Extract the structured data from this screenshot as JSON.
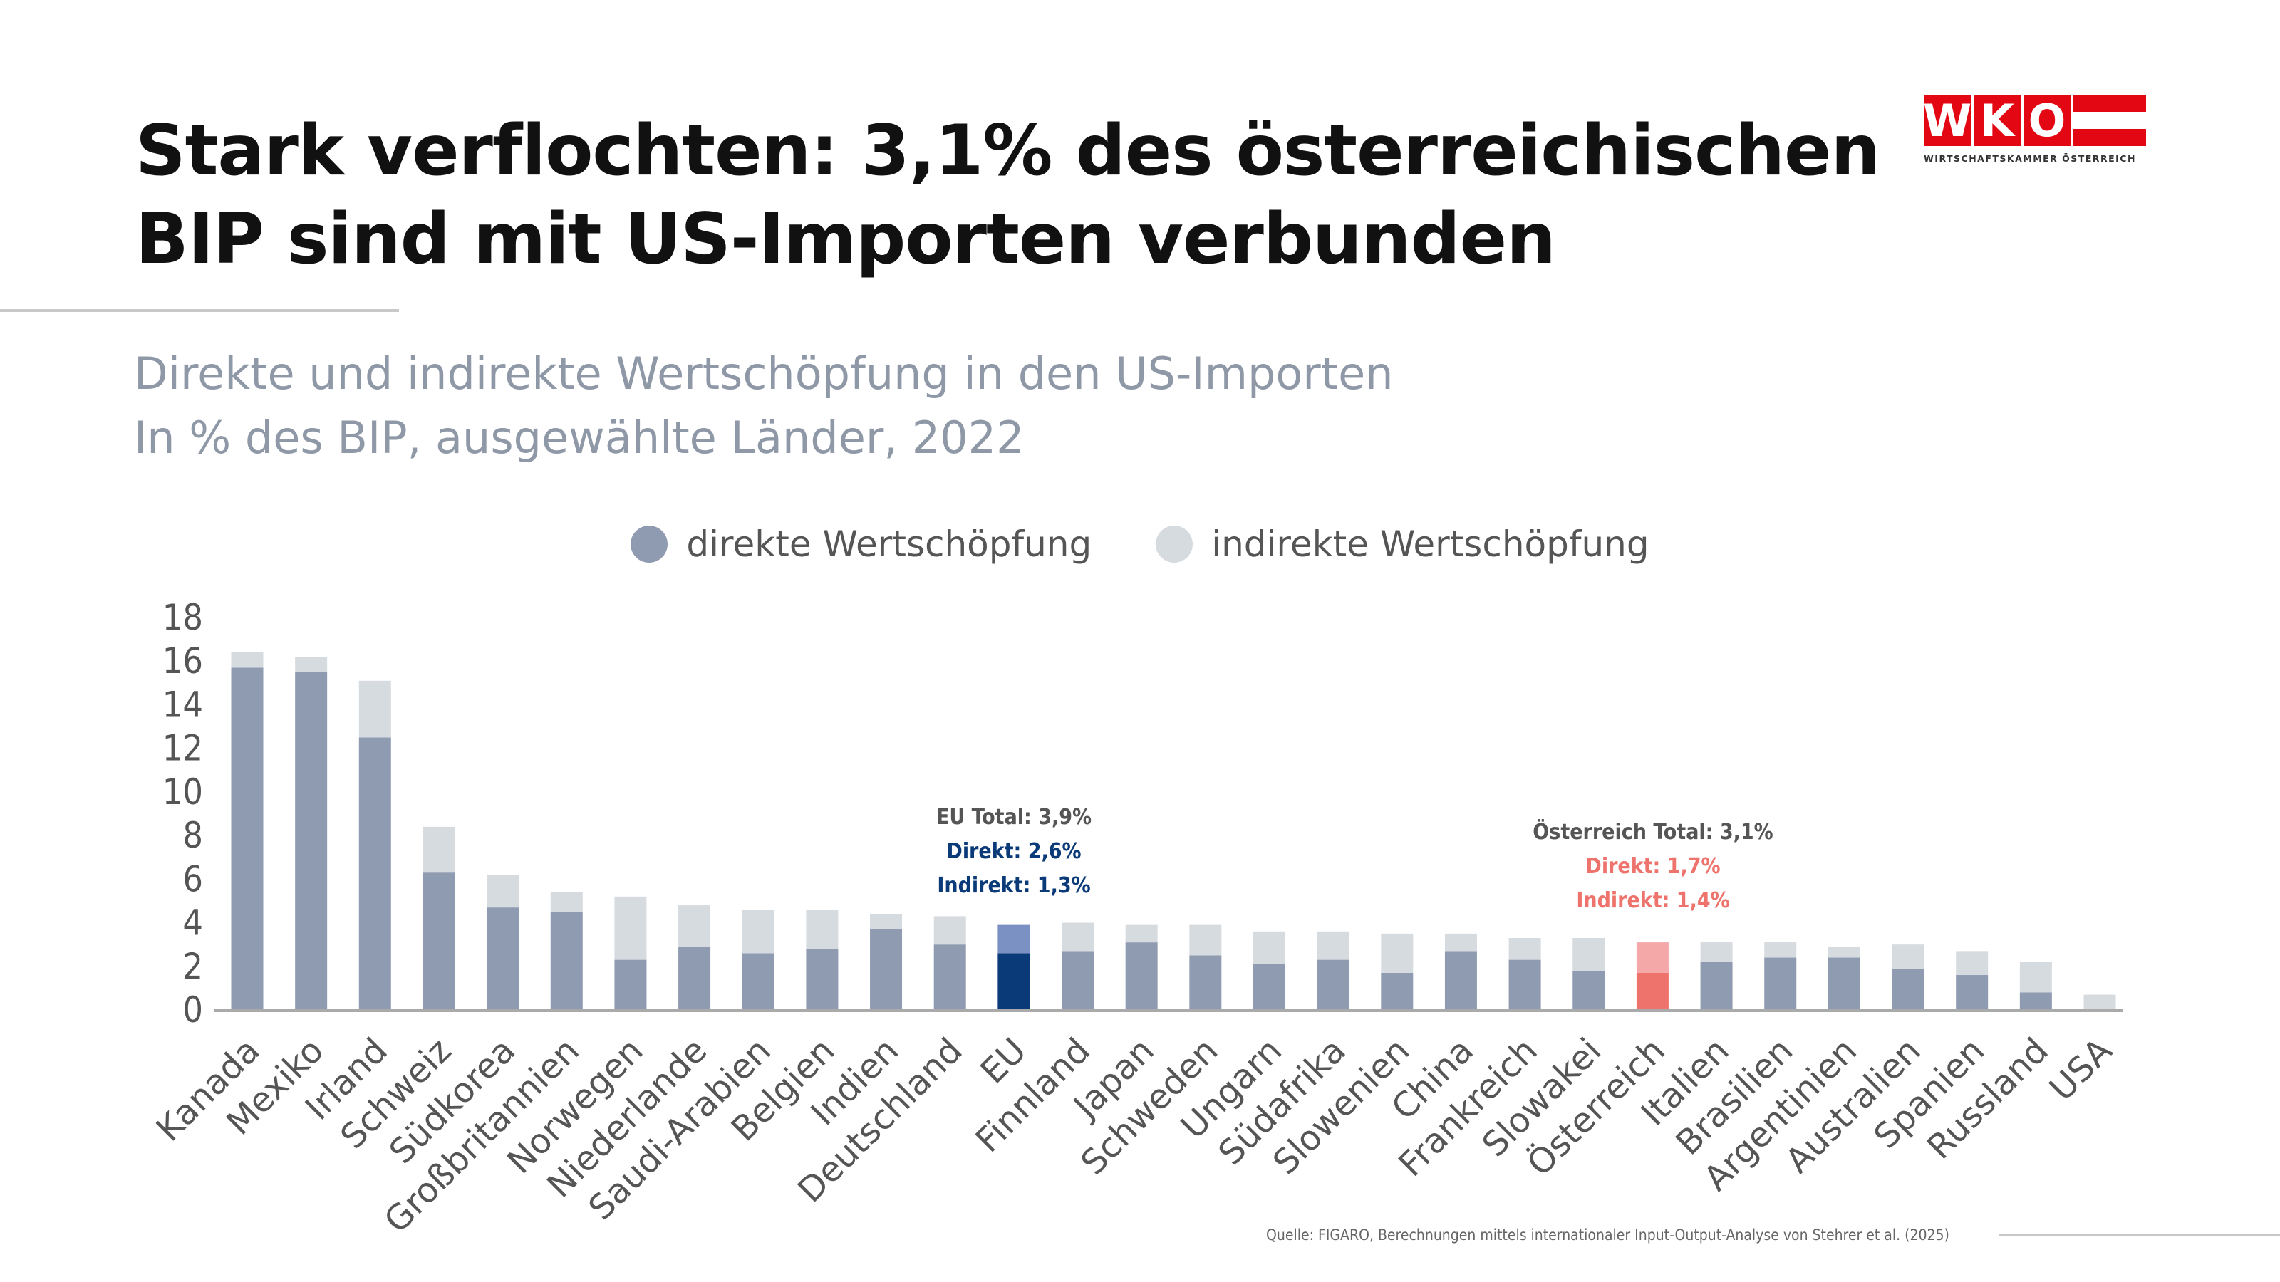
{
  "title": [
    "Stark verflochten: 3,1% des österreichischen",
    "BIP sind mit US-Importen verbunden"
  ],
  "subtitle": [
    "Direkte und indirekte Wertschöpfung in den US-Importen",
    "In % des BIP, ausgewählte Länder, 2022"
  ],
  "logo": {
    "letters": [
      "W",
      "K",
      "O"
    ],
    "text": "WIRTSCHAFTSKAMMER ÖSTERREICH",
    "color": "#e30613"
  },
  "source": "Quelle: FIGARO, Berechnungen mittels internationaler Input-Output-Analyse von Stehrer et al. (2025)",
  "annotations": {
    "eu": {
      "total": "EU Total: 3,9%",
      "direct": "Direkt: 2,6%",
      "indirect": "Indirekt: 1,3%",
      "color": "#0a3a78"
    },
    "austria": {
      "total": "Österreich Total: 3,1%",
      "direct": "Direkt: 1,7%",
      "indirect": "Indirekt: 1,4%",
      "color": "#ee736c"
    }
  },
  "chart_data": {
    "type": "bar",
    "stacked": true,
    "title": "",
    "xlabel": "",
    "ylabel": "",
    "ylim": [
      0,
      18
    ],
    "yticks": [
      0,
      2,
      4,
      6,
      8,
      10,
      12,
      14,
      16,
      18
    ],
    "grid": false,
    "legend_position": "top",
    "categories": [
      "Kanada",
      "Mexiko",
      "Irland",
      "Schweiz",
      "Südkorea",
      "Großbritannien",
      "Norwegen",
      "Niederlande",
      "Saudi-Arabien",
      "Belgien",
      "Indien",
      "Deutschland",
      "EU",
      "Finnland",
      "Japan",
      "Schweden",
      "Ungarn",
      "Südafrika",
      "Slowenien",
      "China",
      "Frankreich",
      "Slowakei",
      "Österreich",
      "Italien",
      "Brasilien",
      "Argentinien",
      "Australien",
      "Spanien",
      "Russland",
      "USA"
    ],
    "series": [
      {
        "name": "direkte Wertschöpfung",
        "color": "#8f9bb0",
        "values": [
          15.7,
          15.5,
          12.5,
          6.3,
          4.7,
          4.5,
          2.3,
          2.9,
          2.6,
          2.8,
          3.7,
          3.0,
          2.6,
          2.7,
          3.1,
          2.5,
          2.1,
          2.3,
          1.7,
          2.7,
          2.3,
          1.8,
          1.7,
          2.2,
          2.4,
          2.4,
          1.9,
          1.6,
          0.8,
          0.0
        ]
      },
      {
        "name": "indirekte Wertschöpfung",
        "color": "#d6dbe0",
        "values": [
          0.7,
          0.7,
          2.6,
          2.1,
          1.5,
          0.9,
          2.9,
          1.9,
          2.0,
          1.8,
          0.7,
          1.3,
          1.3,
          1.3,
          0.8,
          1.4,
          1.5,
          1.3,
          1.8,
          0.8,
          1.0,
          1.5,
          1.4,
          0.9,
          0.7,
          0.5,
          1.1,
          1.1,
          1.4,
          0.7
        ]
      }
    ],
    "highlight": {
      "EU": {
        "direct_color": "#0a3a78",
        "indirect_color": "#7b91c4"
      },
      "Österreich": {
        "direct_color": "#ee736c",
        "indirect_color": "#f4a8a8"
      }
    }
  }
}
